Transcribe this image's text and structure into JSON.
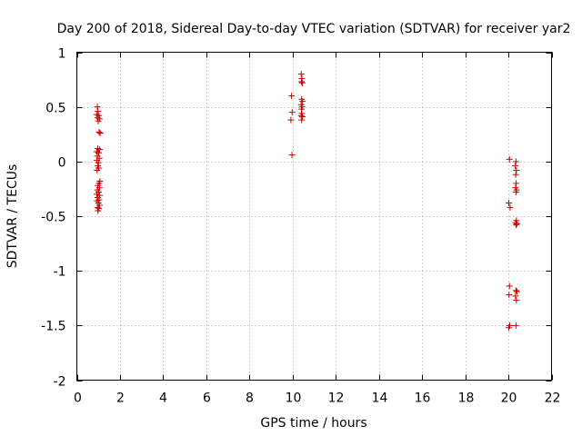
{
  "chart_data": {
    "type": "scatter",
    "title": "Day 200 of 2018, Sidereal Day-to-day VTEC variation (SDTVAR) for receiver yar2",
    "xlabel": "GPS time / hours",
    "ylabel": "SDTVAR / TECUs",
    "xlim": [
      0,
      22
    ],
    "ylim": [
      -2,
      1
    ],
    "xticks": [
      0,
      2,
      4,
      6,
      8,
      10,
      12,
      14,
      16,
      18,
      20,
      22
    ],
    "xtick_labels": [
      "0",
      "2",
      "4",
      "6",
      "8",
      "10",
      "12",
      "14",
      "16",
      "18",
      "20",
      "22"
    ],
    "yticks": [
      -2,
      -1.5,
      -1,
      -0.5,
      0,
      0.5,
      1
    ],
    "ytick_labels": [
      "-2",
      "-1.5",
      "-1",
      "-0.5",
      "0",
      "0.5",
      "1"
    ],
    "grid": true,
    "marker": "+",
    "series": [
      {
        "name": "yar2",
        "color": "#cc0000",
        "points": [
          [
            0.95,
            0.5
          ],
          [
            0.98,
            0.46
          ],
          [
            0.92,
            0.43
          ],
          [
            1.02,
            0.42
          ],
          [
            0.96,
            0.4
          ],
          [
            1.05,
            0.39
          ],
          [
            0.99,
            0.37
          ],
          [
            1.03,
            0.27
          ],
          [
            1.08,
            0.26
          ],
          [
            0.97,
            0.12
          ],
          [
            1.06,
            0.11
          ],
          [
            0.92,
            0.09
          ],
          [
            1.01,
            0.08
          ],
          [
            0.95,
            0.05
          ],
          [
            1.04,
            0.03
          ],
          [
            0.93,
            0.01
          ],
          [
            1.0,
            -0.01
          ],
          [
            0.97,
            -0.04
          ],
          [
            1.02,
            -0.06
          ],
          [
            0.94,
            -0.08
          ],
          [
            1.07,
            -0.18
          ],
          [
            1.03,
            -0.2
          ],
          [
            0.98,
            -0.22
          ],
          [
            1.05,
            -0.24
          ],
          [
            0.95,
            -0.26
          ],
          [
            1.01,
            -0.28
          ],
          [
            0.92,
            -0.3
          ],
          [
            1.06,
            -0.31
          ],
          [
            0.97,
            -0.33
          ],
          [
            1.03,
            -0.35
          ],
          [
            0.94,
            -0.36
          ],
          [
            1.0,
            -0.38
          ],
          [
            1.05,
            -0.4
          ],
          [
            0.96,
            -0.42
          ],
          [
            1.02,
            -0.43
          ],
          [
            0.98,
            -0.45
          ],
          [
            9.95,
            0.6
          ],
          [
            9.98,
            0.45
          ],
          [
            9.92,
            0.38
          ],
          [
            9.97,
            0.06
          ],
          [
            10.4,
            0.8
          ],
          [
            10.43,
            0.76
          ],
          [
            10.41,
            0.73
          ],
          [
            10.45,
            0.72
          ],
          [
            10.42,
            0.57
          ],
          [
            10.46,
            0.55
          ],
          [
            10.4,
            0.52
          ],
          [
            10.44,
            0.5
          ],
          [
            10.41,
            0.48
          ],
          [
            10.43,
            0.44
          ],
          [
            10.4,
            0.42
          ],
          [
            10.45,
            0.41
          ],
          [
            10.42,
            0.38
          ],
          [
            20.05,
            0.02
          ],
          [
            20.02,
            -0.38
          ],
          [
            20.08,
            -0.42
          ],
          [
            20.05,
            -1.14
          ],
          [
            20.03,
            -1.22
          ],
          [
            20.06,
            -1.5
          ],
          [
            20.02,
            -1.52
          ],
          [
            20.35,
            0.0
          ],
          [
            20.32,
            -0.04
          ],
          [
            20.37,
            -0.08
          ],
          [
            20.34,
            -0.12
          ],
          [
            20.36,
            -0.2
          ],
          [
            20.33,
            -0.24
          ],
          [
            20.38,
            -0.26
          ],
          [
            20.35,
            -0.28
          ],
          [
            20.37,
            -0.54
          ],
          [
            20.34,
            -0.56
          ],
          [
            20.36,
            -0.58
          ],
          [
            20.39,
            -0.57
          ],
          [
            20.35,
            -1.18
          ],
          [
            20.4,
            -1.19
          ],
          [
            20.33,
            -1.23
          ],
          [
            20.37,
            -1.27
          ],
          [
            20.35,
            -1.5
          ]
        ]
      }
    ]
  }
}
